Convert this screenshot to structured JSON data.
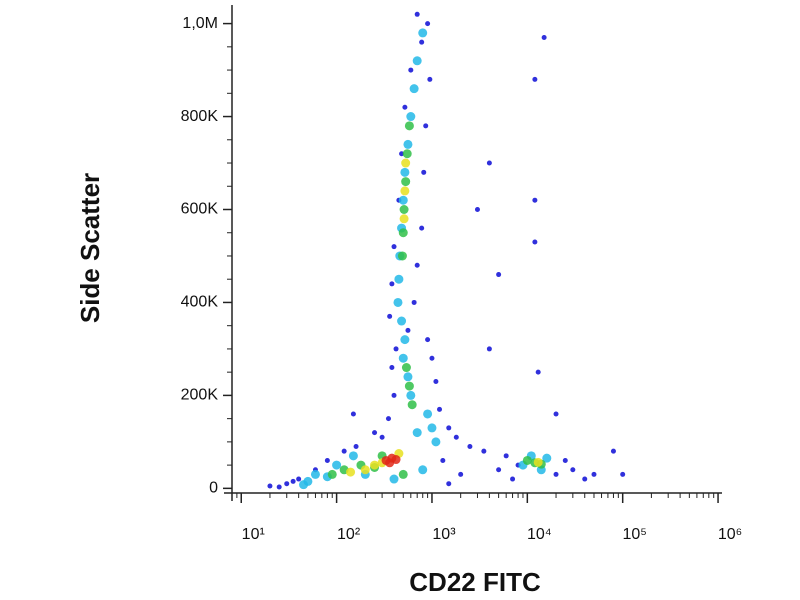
{
  "chart_data": {
    "type": "scatter",
    "xlabel": "CD22 FITC",
    "ylabel": "Side Scatter",
    "xscale": "log",
    "xlim": [
      8,
      1100000
    ],
    "xticks": [
      {
        "value": 10,
        "label": "10¹"
      },
      {
        "value": 100,
        "label": "10²"
      },
      {
        "value": 1000,
        "label": "10³"
      },
      {
        "value": 10000,
        "label": "10⁴"
      },
      {
        "value": 100000,
        "label": "10⁵"
      },
      {
        "value": 1000000,
        "label": "10⁶"
      }
    ],
    "ylim": [
      -10000,
      1040000
    ],
    "yticks": [
      0,
      {
        "value": 200000,
        "label": "200K"
      },
      {
        "value": 400000,
        "label": "400K"
      },
      {
        "value": 600000,
        "label": "600K"
      },
      {
        "value": 800000,
        "label": "800K"
      },
      {
        "value": 1000000,
        "label": "1,0M"
      }
    ],
    "series": [
      {
        "color": "#1a1ad8",
        "x": [
          700,
          900,
          780,
          600,
          950,
          520,
          860,
          480,
          820,
          450,
          780,
          400,
          700,
          380,
          650,
          360,
          560,
          900,
          420,
          1000,
          380,
          1100,
          400,
          1200,
          350,
          1500,
          1800,
          2500,
          3500,
          250,
          160,
          60,
          40,
          30,
          20,
          80,
          120,
          300,
          1300,
          2000,
          1500,
          5000,
          7000,
          6000,
          20000,
          25000,
          30000,
          8000,
          40000,
          50000,
          80000,
          3000,
          15000,
          12000,
          12000,
          12000,
          4000,
          5000,
          13000,
          20000,
          4000,
          150,
          35,
          25,
          100000
        ],
        "values": [
          1020000,
          1000000,
          960000,
          900000,
          880000,
          820000,
          780000,
          720000,
          680000,
          620000,
          560000,
          520000,
          480000,
          440000,
          400000,
          370000,
          340000,
          320000,
          300000,
          280000,
          260000,
          230000,
          200000,
          170000,
          150000,
          130000,
          110000,
          90000,
          80000,
          120000,
          90000,
          40000,
          20000,
          10000,
          5000,
          60000,
          80000,
          110000,
          60000,
          30000,
          10000,
          40000,
          20000,
          70000,
          30000,
          60000,
          40000,
          50000,
          20000,
          30000,
          80000,
          600000,
          970000,
          880000,
          620000,
          530000,
          700000,
          460000,
          250000,
          160000,
          300000,
          160000,
          15000,
          3000,
          30000
        ]
      },
      {
        "color": "#22b8e8",
        "x": [
          800,
          700,
          650,
          600,
          560,
          520,
          500,
          480,
          460,
          450,
          440,
          480,
          520,
          500,
          560,
          600,
          900,
          1000,
          1100,
          700,
          150,
          100,
          60,
          50,
          200,
          400,
          800,
          9000,
          14000,
          16000,
          11000,
          45,
          80
        ],
        "values": [
          980000,
          920000,
          860000,
          800000,
          740000,
          680000,
          620000,
          560000,
          500000,
          450000,
          400000,
          360000,
          320000,
          280000,
          240000,
          200000,
          160000,
          130000,
          100000,
          120000,
          70000,
          50000,
          30000,
          15000,
          30000,
          20000,
          40000,
          50000,
          40000,
          65000,
          70000,
          8000,
          25000
        ]
      },
      {
        "color": "#30c048",
        "x": [
          580,
          550,
          530,
          510,
          500,
          490,
          540,
          580,
          620,
          120,
          180,
          250,
          300,
          12000,
          10000,
          14000,
          90,
          500
        ],
        "values": [
          780000,
          720000,
          660000,
          600000,
          550000,
          500000,
          260000,
          220000,
          180000,
          40000,
          50000,
          45000,
          70000,
          55000,
          60000,
          52000,
          30000,
          30000
        ]
      },
      {
        "color": "#e8e020",
        "x": [
          530,
          520,
          510,
          250,
          300,
          200,
          450,
          13000,
          140
        ],
        "values": [
          700000,
          640000,
          580000,
          50000,
          55000,
          40000,
          75000,
          56000,
          35000
        ]
      },
      {
        "color": "#e02818",
        "x": [
          330,
          380,
          420,
          360
        ],
        "values": [
          60000,
          65000,
          62000,
          55000
        ]
      }
    ]
  }
}
